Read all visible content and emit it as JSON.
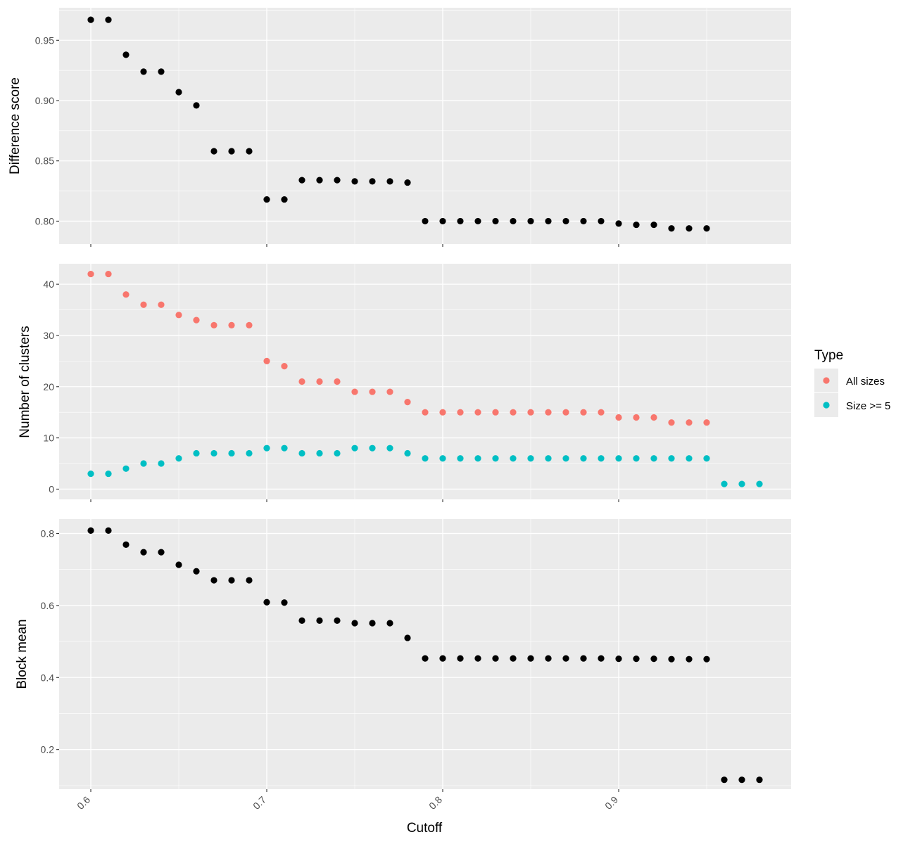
{
  "colors": {
    "panel_background": "#EBEBEB",
    "grid_major": "#FFFFFF",
    "point_default": "#000000",
    "all_sizes": "#F8766D",
    "size_ge_5": "#00BFC4"
  },
  "x_axis": {
    "title": "Cutoff",
    "ticks": [
      0.6,
      0.7,
      0.8,
      0.9
    ],
    "tick_labels": [
      "0.6",
      "0.7",
      "0.8",
      "0.9"
    ],
    "range": [
      0.582,
      0.998
    ]
  },
  "legend": {
    "title": "Type",
    "placement": "right",
    "items": [
      {
        "label": "All sizes",
        "color_key": "all_sizes"
      },
      {
        "label": "Size >= 5",
        "color_key": "size_ge_5"
      }
    ]
  },
  "chart_data": [
    {
      "type": "scatter",
      "panel": "top",
      "ylabel": "Difference score",
      "ylim": [
        0.781,
        0.977
      ],
      "yticks": [
        0.8,
        0.85,
        0.9,
        0.95
      ],
      "ytick_labels": [
        "0.80",
        "0.85",
        "0.90",
        "0.95"
      ],
      "series": [
        {
          "color_key": "point_default",
          "x": [
            0.6,
            0.61,
            0.62,
            0.63,
            0.64,
            0.65,
            0.66,
            0.67,
            0.68,
            0.69,
            0.7,
            0.71,
            0.72,
            0.73,
            0.74,
            0.75,
            0.76,
            0.77,
            0.78,
            0.79,
            0.8,
            0.81,
            0.82,
            0.83,
            0.84,
            0.85,
            0.86,
            0.87,
            0.88,
            0.89,
            0.9,
            0.91,
            0.92,
            0.93,
            0.94,
            0.95
          ],
          "y": [
            0.967,
            0.967,
            0.938,
            0.924,
            0.924,
            0.907,
            0.896,
            0.858,
            0.858,
            0.858,
            0.818,
            0.818,
            0.834,
            0.834,
            0.834,
            0.833,
            0.833,
            0.833,
            0.832,
            0.8,
            0.8,
            0.8,
            0.8,
            0.8,
            0.8,
            0.8,
            0.8,
            0.8,
            0.8,
            0.8,
            0.798,
            0.797,
            0.797,
            0.794,
            0.794,
            0.794
          ]
        }
      ]
    },
    {
      "type": "scatter",
      "panel": "middle",
      "ylabel": "Number of clusters",
      "ylim": [
        -2,
        44
      ],
      "yticks": [
        0,
        10,
        20,
        30,
        40
      ],
      "ytick_labels": [
        "0",
        "10",
        "20",
        "30",
        "40"
      ],
      "series": [
        {
          "name": "All sizes",
          "color_key": "all_sizes",
          "x": [
            0.6,
            0.61,
            0.62,
            0.63,
            0.64,
            0.65,
            0.66,
            0.67,
            0.68,
            0.69,
            0.7,
            0.71,
            0.72,
            0.73,
            0.74,
            0.75,
            0.76,
            0.77,
            0.78,
            0.79,
            0.8,
            0.81,
            0.82,
            0.83,
            0.84,
            0.85,
            0.86,
            0.87,
            0.88,
            0.89,
            0.9,
            0.91,
            0.92,
            0.93,
            0.94,
            0.95
          ],
          "y": [
            42,
            42,
            38,
            36,
            36,
            34,
            33,
            32,
            32,
            32,
            25,
            24,
            21,
            21,
            21,
            19,
            19,
            19,
            17,
            15,
            15,
            15,
            15,
            15,
            15,
            15,
            15,
            15,
            15,
            15,
            14,
            14,
            14,
            13,
            13,
            13
          ]
        },
        {
          "name": "Size >= 5",
          "color_key": "size_ge_5",
          "x": [
            0.6,
            0.61,
            0.62,
            0.63,
            0.64,
            0.65,
            0.66,
            0.67,
            0.68,
            0.69,
            0.7,
            0.71,
            0.72,
            0.73,
            0.74,
            0.75,
            0.76,
            0.77,
            0.78,
            0.79,
            0.8,
            0.81,
            0.82,
            0.83,
            0.84,
            0.85,
            0.86,
            0.87,
            0.88,
            0.89,
            0.9,
            0.91,
            0.92,
            0.93,
            0.94,
            0.95,
            0.96,
            0.97,
            0.98
          ],
          "y": [
            3,
            3,
            4,
            5,
            5,
            6,
            7,
            7,
            7,
            7,
            8,
            8,
            7,
            7,
            7,
            8,
            8,
            8,
            7,
            6,
            6,
            6,
            6,
            6,
            6,
            6,
            6,
            6,
            6,
            6,
            6,
            6,
            6,
            6,
            6,
            6,
            1,
            1,
            1
          ]
        }
      ]
    },
    {
      "type": "scatter",
      "panel": "bottom",
      "ylabel": "Block mean",
      "ylim": [
        0.09,
        0.84
      ],
      "yticks": [
        0.2,
        0.4,
        0.6,
        0.8
      ],
      "ytick_labels": [
        "0.2",
        "0.4",
        "0.6",
        "0.8"
      ],
      "series": [
        {
          "color_key": "point_default",
          "x": [
            0.6,
            0.61,
            0.62,
            0.63,
            0.64,
            0.65,
            0.66,
            0.67,
            0.68,
            0.69,
            0.7,
            0.71,
            0.72,
            0.73,
            0.74,
            0.75,
            0.76,
            0.77,
            0.78,
            0.79,
            0.8,
            0.81,
            0.82,
            0.83,
            0.84,
            0.85,
            0.86,
            0.87,
            0.88,
            0.89,
            0.9,
            0.91,
            0.92,
            0.93,
            0.94,
            0.95,
            0.96,
            0.97,
            0.98
          ],
          "y": [
            0.808,
            0.808,
            0.769,
            0.748,
            0.748,
            0.713,
            0.695,
            0.67,
            0.67,
            0.67,
            0.609,
            0.608,
            0.558,
            0.558,
            0.558,
            0.551,
            0.551,
            0.551,
            0.51,
            0.453,
            0.453,
            0.453,
            0.453,
            0.453,
            0.453,
            0.453,
            0.453,
            0.453,
            0.453,
            0.453,
            0.452,
            0.452,
            0.452,
            0.451,
            0.451,
            0.451,
            0.116,
            0.116,
            0.116
          ]
        }
      ]
    }
  ]
}
